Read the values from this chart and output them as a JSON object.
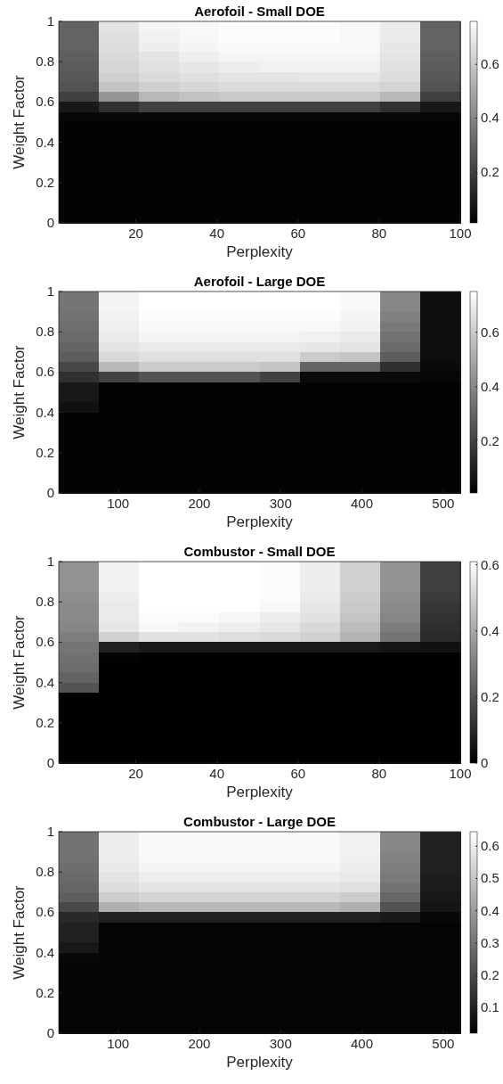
{
  "chart_data": [
    {
      "type": "heatmap",
      "title": "Aerofoil - Small DOE",
      "xlabel": "Perplexity",
      "ylabel": "Weight Factor",
      "xlim": [
        1,
        100
      ],
      "xticks": [
        20,
        40,
        60,
        80,
        100
      ],
      "ylim": [
        0,
        1
      ],
      "yticks": [
        0,
        0.2,
        0.4,
        0.6,
        0.8,
        1
      ],
      "clim": [
        0.01,
        0.76
      ],
      "cticks": [
        0.2,
        0.4,
        0.6
      ],
      "cells": [
        [
          0.3,
          0.68,
          0.73,
          0.74,
          0.75,
          0.75,
          0.75,
          0.74,
          0.7,
          0.3
        ],
        [
          0.3,
          0.67,
          0.72,
          0.74,
          0.75,
          0.75,
          0.75,
          0.74,
          0.7,
          0.3
        ],
        [
          0.3,
          0.66,
          0.71,
          0.73,
          0.74,
          0.74,
          0.74,
          0.74,
          0.69,
          0.3
        ],
        [
          0.29,
          0.65,
          0.68,
          0.71,
          0.73,
          0.73,
          0.73,
          0.73,
          0.68,
          0.29
        ],
        [
          0.28,
          0.64,
          0.67,
          0.69,
          0.71,
          0.72,
          0.72,
          0.72,
          0.67,
          0.28
        ],
        [
          0.27,
          0.62,
          0.65,
          0.67,
          0.68,
          0.68,
          0.69,
          0.69,
          0.66,
          0.27
        ],
        [
          0.25,
          0.58,
          0.62,
          0.64,
          0.65,
          0.65,
          0.65,
          0.65,
          0.63,
          0.25
        ],
        [
          0.2,
          0.45,
          0.55,
          0.58,
          0.6,
          0.6,
          0.6,
          0.6,
          0.55,
          0.2
        ],
        [
          0.08,
          0.15,
          0.2,
          0.2,
          0.2,
          0.2,
          0.2,
          0.2,
          0.15,
          0.08
        ],
        [
          0.03,
          0.03,
          0.03,
          0.03,
          0.03,
          0.03,
          0.03,
          0.03,
          0.03,
          0.03
        ],
        [
          0.02,
          0.02,
          0.02,
          0.02,
          0.02,
          0.02,
          0.02,
          0.02,
          0.02,
          0.02
        ],
        [
          0.02,
          0.02,
          0.02,
          0.02,
          0.02,
          0.02,
          0.02,
          0.02,
          0.02,
          0.02
        ],
        [
          0.02,
          0.02,
          0.02,
          0.02,
          0.02,
          0.02,
          0.02,
          0.02,
          0.02,
          0.02
        ],
        [
          0.02,
          0.02,
          0.02,
          0.02,
          0.02,
          0.02,
          0.02,
          0.02,
          0.02,
          0.02
        ],
        [
          0.02,
          0.02,
          0.02,
          0.02,
          0.02,
          0.02,
          0.02,
          0.02,
          0.02,
          0.02
        ],
        [
          0.02,
          0.02,
          0.02,
          0.02,
          0.02,
          0.02,
          0.02,
          0.02,
          0.02,
          0.02
        ],
        [
          0.02,
          0.02,
          0.02,
          0.02,
          0.02,
          0.02,
          0.02,
          0.02,
          0.02,
          0.02
        ],
        [
          0.02,
          0.02,
          0.02,
          0.02,
          0.02,
          0.02,
          0.02,
          0.02,
          0.02,
          0.02
        ],
        [
          0.02,
          0.02,
          0.02,
          0.02,
          0.02,
          0.02,
          0.02,
          0.02,
          0.02,
          0.02
        ],
        [
          0.02,
          0.02,
          0.02,
          0.02,
          0.02,
          0.02,
          0.02,
          0.02,
          0.02,
          0.02
        ]
      ]
    },
    {
      "type": "heatmap",
      "title": "Aerofoil - Large DOE",
      "xlabel": "Perplexity",
      "ylabel": "Weight Factor",
      "xlim": [
        27,
        521
      ],
      "xticks": [
        100,
        200,
        300,
        400,
        500
      ],
      "ylim": [
        0,
        1
      ],
      "yticks": [
        0,
        0.2,
        0.4,
        0.6,
        0.8,
        1
      ],
      "clim": [
        0.01,
        0.75
      ],
      "cticks": [
        0.2,
        0.4,
        0.6
      ],
      "cells": [
        [
          0.35,
          0.72,
          0.75,
          0.75,
          0.75,
          0.75,
          0.75,
          0.73,
          0.4,
          0.05
        ],
        [
          0.35,
          0.72,
          0.75,
          0.75,
          0.75,
          0.75,
          0.75,
          0.73,
          0.4,
          0.05
        ],
        [
          0.34,
          0.71,
          0.74,
          0.74,
          0.74,
          0.74,
          0.74,
          0.72,
          0.38,
          0.05
        ],
        [
          0.33,
          0.7,
          0.73,
          0.73,
          0.73,
          0.73,
          0.73,
          0.71,
          0.36,
          0.05
        ],
        [
          0.32,
          0.69,
          0.72,
          0.72,
          0.72,
          0.72,
          0.71,
          0.69,
          0.34,
          0.05
        ],
        [
          0.3,
          0.67,
          0.69,
          0.69,
          0.69,
          0.69,
          0.68,
          0.67,
          0.32,
          0.05
        ],
        [
          0.28,
          0.64,
          0.66,
          0.66,
          0.66,
          0.66,
          0.6,
          0.58,
          0.28,
          0.05
        ],
        [
          0.22,
          0.55,
          0.6,
          0.6,
          0.6,
          0.58,
          0.3,
          0.3,
          0.15,
          0.04
        ],
        [
          0.15,
          0.2,
          0.25,
          0.25,
          0.25,
          0.2,
          0.04,
          0.04,
          0.04,
          0.03
        ],
        [
          0.08,
          0.02,
          0.02,
          0.02,
          0.02,
          0.02,
          0.02,
          0.02,
          0.02,
          0.02
        ],
        [
          0.08,
          0.02,
          0.02,
          0.02,
          0.02,
          0.02,
          0.02,
          0.02,
          0.02,
          0.02
        ],
        [
          0.06,
          0.02,
          0.02,
          0.02,
          0.02,
          0.02,
          0.02,
          0.02,
          0.02,
          0.02
        ],
        [
          0.02,
          0.02,
          0.02,
          0.02,
          0.02,
          0.02,
          0.02,
          0.02,
          0.02,
          0.02
        ],
        [
          0.02,
          0.02,
          0.02,
          0.02,
          0.02,
          0.02,
          0.02,
          0.02,
          0.02,
          0.02
        ],
        [
          0.02,
          0.02,
          0.02,
          0.02,
          0.02,
          0.02,
          0.02,
          0.02,
          0.02,
          0.02
        ],
        [
          0.02,
          0.02,
          0.02,
          0.02,
          0.02,
          0.02,
          0.02,
          0.02,
          0.02,
          0.02
        ],
        [
          0.02,
          0.02,
          0.02,
          0.02,
          0.02,
          0.02,
          0.02,
          0.02,
          0.02,
          0.02
        ],
        [
          0.02,
          0.02,
          0.02,
          0.02,
          0.02,
          0.02,
          0.02,
          0.02,
          0.02,
          0.02
        ],
        [
          0.02,
          0.02,
          0.02,
          0.02,
          0.02,
          0.02,
          0.02,
          0.02,
          0.02,
          0.02
        ],
        [
          0.02,
          0.02,
          0.02,
          0.02,
          0.02,
          0.02,
          0.02,
          0.02,
          0.02,
          0.02
        ]
      ]
    },
    {
      "type": "heatmap",
      "title": "Combustor - Small DOE",
      "xlabel": "Perplexity",
      "ylabel": "Weight Factor",
      "xlim": [
        1,
        100
      ],
      "xticks": [
        20,
        40,
        60,
        80,
        100
      ],
      "ylim": [
        0,
        1
      ],
      "yticks": [
        0,
        0.2,
        0.4,
        0.6,
        0.8,
        1
      ],
      "clim": [
        0,
        0.61
      ],
      "cticks": [
        0,
        0.2,
        0.4,
        0.6
      ],
      "cells": [
        [
          0.35,
          0.58,
          0.61,
          0.61,
          0.61,
          0.6,
          0.57,
          0.5,
          0.35,
          0.15
        ],
        [
          0.35,
          0.58,
          0.61,
          0.61,
          0.61,
          0.6,
          0.57,
          0.5,
          0.35,
          0.15
        ],
        [
          0.35,
          0.58,
          0.61,
          0.61,
          0.61,
          0.6,
          0.57,
          0.5,
          0.35,
          0.15
        ],
        [
          0.34,
          0.57,
          0.61,
          0.61,
          0.61,
          0.6,
          0.56,
          0.49,
          0.34,
          0.14
        ],
        [
          0.33,
          0.56,
          0.61,
          0.61,
          0.61,
          0.59,
          0.55,
          0.48,
          0.33,
          0.13
        ],
        [
          0.33,
          0.56,
          0.6,
          0.6,
          0.59,
          0.57,
          0.54,
          0.47,
          0.32,
          0.12
        ],
        [
          0.32,
          0.55,
          0.59,
          0.58,
          0.57,
          0.55,
          0.52,
          0.45,
          0.3,
          0.11
        ],
        [
          0.3,
          0.5,
          0.54,
          0.54,
          0.53,
          0.52,
          0.5,
          0.43,
          0.28,
          0.1
        ],
        [
          0.28,
          0.08,
          0.06,
          0.06,
          0.06,
          0.06,
          0.06,
          0.06,
          0.05,
          0.04
        ],
        [
          0.27,
          0.01,
          0,
          0,
          0,
          0,
          0,
          0,
          0,
          0
        ],
        [
          0.26,
          0,
          0,
          0,
          0,
          0,
          0,
          0,
          0,
          0
        ],
        [
          0.24,
          0,
          0,
          0,
          0,
          0,
          0,
          0,
          0,
          0
        ],
        [
          0.2,
          0,
          0,
          0,
          0,
          0,
          0,
          0,
          0,
          0
        ],
        [
          0,
          0,
          0,
          0,
          0,
          0,
          0,
          0,
          0,
          0
        ],
        [
          0,
          0,
          0,
          0,
          0,
          0,
          0,
          0,
          0,
          0
        ],
        [
          0,
          0,
          0,
          0,
          0,
          0,
          0,
          0,
          0,
          0
        ],
        [
          0,
          0,
          0,
          0,
          0,
          0,
          0,
          0,
          0,
          0
        ],
        [
          0,
          0,
          0,
          0,
          0,
          0,
          0,
          0,
          0,
          0
        ],
        [
          0,
          0,
          0,
          0,
          0,
          0,
          0,
          0,
          0,
          0
        ],
        [
          0,
          0,
          0,
          0,
          0,
          0,
          0,
          0,
          0,
          0
        ]
      ]
    },
    {
      "type": "heatmap",
      "title": "Combustor - Large DOE",
      "xlabel": "Perplexity",
      "ylabel": "Weight Factor",
      "xlim": [
        27,
        521
      ],
      "xticks": [
        100,
        200,
        300,
        400,
        500
      ],
      "ylim": [
        0,
        1
      ],
      "yticks": [
        0,
        0.2,
        0.4,
        0.6,
        0.8,
        1
      ],
      "clim": [
        0.02,
        0.645
      ],
      "cticks": [
        0.1,
        0.2,
        0.3,
        0.4,
        0.5,
        0.6
      ],
      "cells": [
        [
          0.3,
          0.6,
          0.63,
          0.63,
          0.63,
          0.63,
          0.63,
          0.61,
          0.35,
          0.1
        ],
        [
          0.3,
          0.6,
          0.63,
          0.63,
          0.63,
          0.63,
          0.63,
          0.61,
          0.35,
          0.1
        ],
        [
          0.3,
          0.6,
          0.63,
          0.63,
          0.63,
          0.63,
          0.63,
          0.61,
          0.34,
          0.1
        ],
        [
          0.29,
          0.59,
          0.62,
          0.62,
          0.62,
          0.62,
          0.62,
          0.6,
          0.33,
          0.1
        ],
        [
          0.28,
          0.58,
          0.6,
          0.6,
          0.6,
          0.6,
          0.6,
          0.59,
          0.32,
          0.09
        ],
        [
          0.27,
          0.56,
          0.58,
          0.58,
          0.58,
          0.58,
          0.58,
          0.57,
          0.3,
          0.09
        ],
        [
          0.25,
          0.52,
          0.54,
          0.54,
          0.54,
          0.54,
          0.54,
          0.52,
          0.27,
          0.08
        ],
        [
          0.2,
          0.45,
          0.47,
          0.47,
          0.47,
          0.47,
          0.47,
          0.45,
          0.22,
          0.07
        ],
        [
          0.12,
          0.1,
          0.1,
          0.1,
          0.1,
          0.1,
          0.1,
          0.1,
          0.08,
          0.04
        ],
        [
          0.1,
          0.03,
          0.03,
          0.03,
          0.03,
          0.03,
          0.03,
          0.03,
          0.03,
          0.03
        ],
        [
          0.1,
          0.03,
          0.03,
          0.03,
          0.03,
          0.03,
          0.03,
          0.03,
          0.03,
          0.03
        ],
        [
          0.08,
          0.03,
          0.03,
          0.03,
          0.03,
          0.03,
          0.03,
          0.03,
          0.03,
          0.03
        ],
        [
          0.04,
          0.03,
          0.03,
          0.03,
          0.03,
          0.03,
          0.03,
          0.03,
          0.03,
          0.03
        ],
        [
          0.03,
          0.03,
          0.03,
          0.03,
          0.03,
          0.03,
          0.03,
          0.03,
          0.03,
          0.03
        ],
        [
          0.03,
          0.03,
          0.03,
          0.03,
          0.03,
          0.03,
          0.03,
          0.03,
          0.03,
          0.03
        ],
        [
          0.03,
          0.03,
          0.03,
          0.03,
          0.03,
          0.03,
          0.03,
          0.03,
          0.03,
          0.03
        ],
        [
          0.03,
          0.03,
          0.03,
          0.03,
          0.03,
          0.03,
          0.03,
          0.03,
          0.03,
          0.03
        ],
        [
          0.03,
          0.03,
          0.03,
          0.03,
          0.03,
          0.03,
          0.03,
          0.03,
          0.03,
          0.03
        ],
        [
          0.03,
          0.03,
          0.03,
          0.03,
          0.03,
          0.03,
          0.03,
          0.03,
          0.03,
          0.03
        ],
        [
          0.03,
          0.03,
          0.03,
          0.03,
          0.03,
          0.03,
          0.03,
          0.03,
          0.03,
          0.03
        ]
      ]
    }
  ]
}
